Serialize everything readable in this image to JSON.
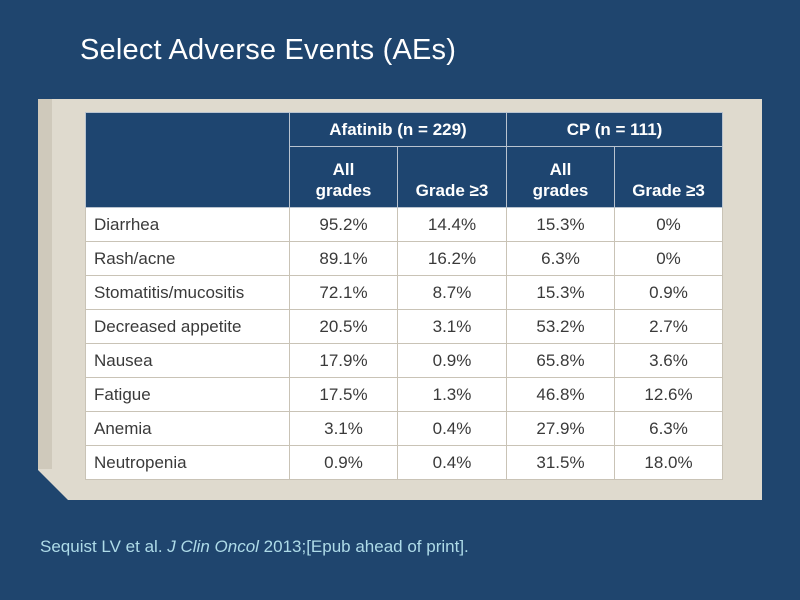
{
  "title": "Select Adverse Events (AEs)",
  "table": {
    "groups": [
      {
        "label": "Afatinib (n = 229)"
      },
      {
        "label": "CP (n = 111)"
      }
    ],
    "subheaders": {
      "all_grades_line1": "All",
      "all_grades_line2": "grades",
      "grade3": "Grade ≥3"
    },
    "rows": [
      {
        "event": "Diarrhea",
        "values": [
          "95.2%",
          "14.4%",
          "15.3%",
          "0%"
        ]
      },
      {
        "event": "Rash/acne",
        "values": [
          "89.1%",
          "16.2%",
          "6.3%",
          "0%"
        ]
      },
      {
        "event": "Stomatitis/mucositis",
        "values": [
          "72.1%",
          "8.7%",
          "15.3%",
          "0.9%"
        ]
      },
      {
        "event": "Decreased appetite",
        "values": [
          "20.5%",
          "3.1%",
          "53.2%",
          "2.7%"
        ]
      },
      {
        "event": "Nausea",
        "values": [
          "17.9%",
          "0.9%",
          "65.8%",
          "3.6%"
        ]
      },
      {
        "event": "Fatigue",
        "values": [
          "17.5%",
          "1.3%",
          "46.8%",
          "12.6%"
        ]
      },
      {
        "event": "Anemia",
        "values": [
          "3.1%",
          "0.4%",
          "27.9%",
          "6.3%"
        ]
      },
      {
        "event": "Neutropenia",
        "values": [
          "0.9%",
          "0.4%",
          "31.5%",
          "18.0%"
        ]
      }
    ]
  },
  "citation": {
    "authors": "Sequist LV et al.",
    "journal": "J Clin Oncol",
    "rest": "2013;[Epub ahead of print]."
  },
  "colors": {
    "background": "#1f456e",
    "header_fill": "#1e4570",
    "panel": "#dfdace",
    "citation_text": "#aedbe8"
  }
}
